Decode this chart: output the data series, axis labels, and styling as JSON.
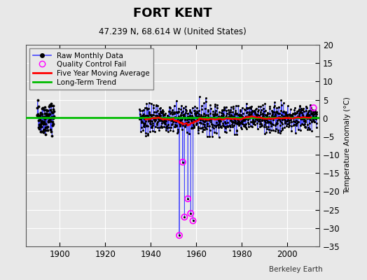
{
  "title": "FORT KENT",
  "subtitle": "47.239 N, 68.614 W (United States)",
  "ylabel": "Temperature Anomaly (°C)",
  "credit": "Berkeley Earth",
  "xlim": [
    1885,
    2014
  ],
  "ylim": [
    -35,
    20
  ],
  "yticks": [
    -35,
    -30,
    -25,
    -20,
    -15,
    -10,
    -5,
    0,
    5,
    10,
    15,
    20
  ],
  "xticks": [
    1900,
    1920,
    1940,
    1960,
    1980,
    2000
  ],
  "bg_color": "#e8e8e8",
  "grid_color": "#ffffff",
  "raw_line_color": "#4444ff",
  "raw_dot_color": "#000000",
  "ma_color": "#ff0000",
  "trend_color": "#00bb00",
  "qc_color": "#ff00ff",
  "early_start": 1890,
  "early_end": 1897.5,
  "main_start": 1935,
  "main_end": 2013,
  "spike_year_start": 1950,
  "spike_year_end": 1960,
  "extreme_years": [
    1952.5,
    1954.0,
    1954.75,
    1956.25,
    1957.5,
    1958.5
  ],
  "extreme_vals": [
    -32,
    -12,
    -27,
    -22,
    -26,
    -28
  ],
  "qc_years": [
    1952.5,
    1954.0,
    1954.75,
    1956.25,
    1957.5,
    1958.5,
    2011.5
  ],
  "qc_vals": [
    -32,
    -12,
    -27,
    -22,
    -26,
    -28,
    2.8
  ],
  "trend_y": 0.2
}
